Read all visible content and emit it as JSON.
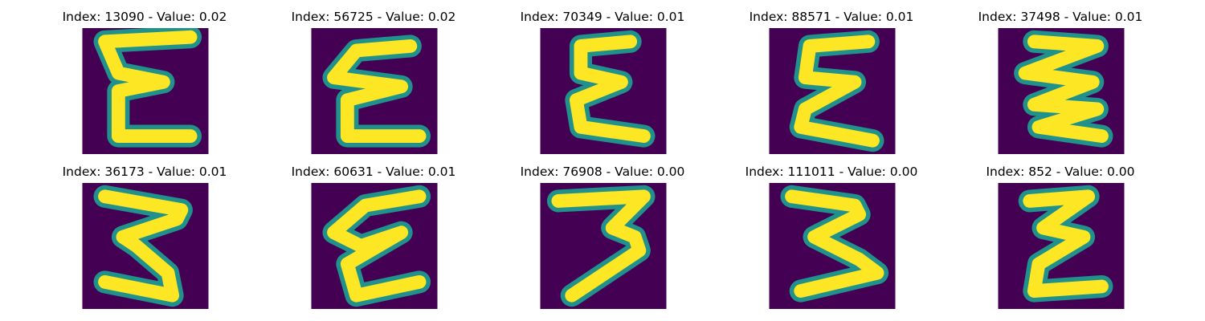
{
  "colors": {
    "background": "#440154",
    "stroke_edge": "#21918c",
    "stroke_mid": "#5ec962",
    "stroke_core": "#fde725"
  },
  "panels": [
    {
      "title": "Index: 13090 - Value: 0.02",
      "glyph": "E-like handwritten letter"
    },
    {
      "title": "Index: 56725 - Value: 0.02",
      "glyph": "E-like handwritten letter"
    },
    {
      "title": "Index: 70349 - Value: 0.01",
      "glyph": "E-like handwritten letter"
    },
    {
      "title": "Index: 88571 - Value: 0.01",
      "glyph": "E-like handwritten letter"
    },
    {
      "title": "Index: 37498 - Value: 0.01",
      "glyph": "zigzag E-like letter"
    },
    {
      "title": "Index: 36173 - Value: 0.01",
      "glyph": "zigzag 3/E-like letter"
    },
    {
      "title": "Index: 60631 - Value: 0.01",
      "glyph": "slanted E-like letter"
    },
    {
      "title": "Index: 76908 - Value: 0.00",
      "glyph": "3-like handwritten digit"
    },
    {
      "title": "Index: 111011 - Value: 0.00",
      "glyph": "3-like handwritten digit"
    },
    {
      "title": "Index: 852 - Value: 0.00",
      "glyph": "zigzag E-like letter"
    }
  ]
}
